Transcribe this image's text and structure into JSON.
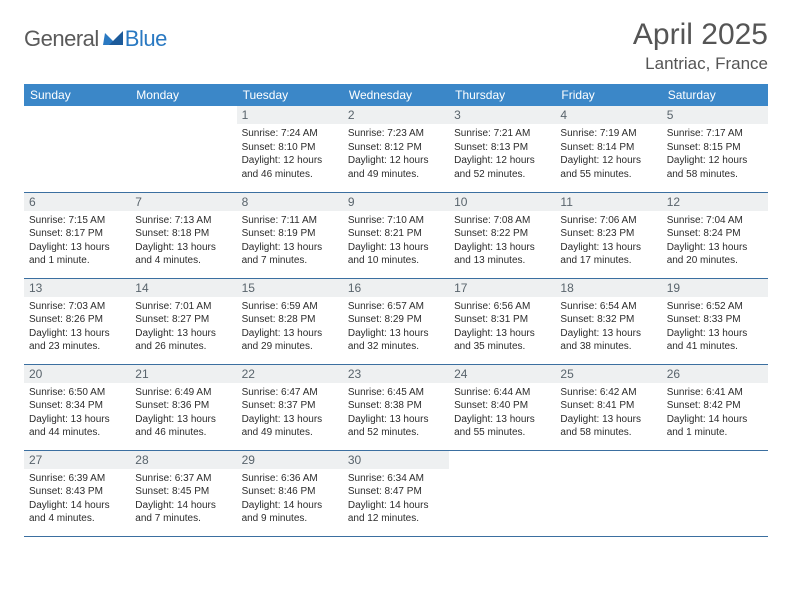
{
  "brand": {
    "part1": "General",
    "part2": "Blue"
  },
  "title": "April 2025",
  "location": "Lantriac, France",
  "colors": {
    "header_bg": "#3b87c8",
    "header_text": "#ffffff",
    "daynum_bg": "#eef0f1",
    "daynum_text": "#59646c",
    "border": "#3b6fa0",
    "title_text": "#555555",
    "logo_gray": "#5a5a5a",
    "logo_blue": "#2a79c2"
  },
  "weekdays": [
    "Sunday",
    "Monday",
    "Tuesday",
    "Wednesday",
    "Thursday",
    "Friday",
    "Saturday"
  ],
  "weeks": [
    [
      {
        "empty": true
      },
      {
        "empty": true
      },
      {
        "num": "1",
        "sunrise": "Sunrise: 7:24 AM",
        "sunset": "Sunset: 8:10 PM",
        "daylight": "Daylight: 12 hours and 46 minutes."
      },
      {
        "num": "2",
        "sunrise": "Sunrise: 7:23 AM",
        "sunset": "Sunset: 8:12 PM",
        "daylight": "Daylight: 12 hours and 49 minutes."
      },
      {
        "num": "3",
        "sunrise": "Sunrise: 7:21 AM",
        "sunset": "Sunset: 8:13 PM",
        "daylight": "Daylight: 12 hours and 52 minutes."
      },
      {
        "num": "4",
        "sunrise": "Sunrise: 7:19 AM",
        "sunset": "Sunset: 8:14 PM",
        "daylight": "Daylight: 12 hours and 55 minutes."
      },
      {
        "num": "5",
        "sunrise": "Sunrise: 7:17 AM",
        "sunset": "Sunset: 8:15 PM",
        "daylight": "Daylight: 12 hours and 58 minutes."
      }
    ],
    [
      {
        "num": "6",
        "sunrise": "Sunrise: 7:15 AM",
        "sunset": "Sunset: 8:17 PM",
        "daylight": "Daylight: 13 hours and 1 minute."
      },
      {
        "num": "7",
        "sunrise": "Sunrise: 7:13 AM",
        "sunset": "Sunset: 8:18 PM",
        "daylight": "Daylight: 13 hours and 4 minutes."
      },
      {
        "num": "8",
        "sunrise": "Sunrise: 7:11 AM",
        "sunset": "Sunset: 8:19 PM",
        "daylight": "Daylight: 13 hours and 7 minutes."
      },
      {
        "num": "9",
        "sunrise": "Sunrise: 7:10 AM",
        "sunset": "Sunset: 8:21 PM",
        "daylight": "Daylight: 13 hours and 10 minutes."
      },
      {
        "num": "10",
        "sunrise": "Sunrise: 7:08 AM",
        "sunset": "Sunset: 8:22 PM",
        "daylight": "Daylight: 13 hours and 13 minutes."
      },
      {
        "num": "11",
        "sunrise": "Sunrise: 7:06 AM",
        "sunset": "Sunset: 8:23 PM",
        "daylight": "Daylight: 13 hours and 17 minutes."
      },
      {
        "num": "12",
        "sunrise": "Sunrise: 7:04 AM",
        "sunset": "Sunset: 8:24 PM",
        "daylight": "Daylight: 13 hours and 20 minutes."
      }
    ],
    [
      {
        "num": "13",
        "sunrise": "Sunrise: 7:03 AM",
        "sunset": "Sunset: 8:26 PM",
        "daylight": "Daylight: 13 hours and 23 minutes."
      },
      {
        "num": "14",
        "sunrise": "Sunrise: 7:01 AM",
        "sunset": "Sunset: 8:27 PM",
        "daylight": "Daylight: 13 hours and 26 minutes."
      },
      {
        "num": "15",
        "sunrise": "Sunrise: 6:59 AM",
        "sunset": "Sunset: 8:28 PM",
        "daylight": "Daylight: 13 hours and 29 minutes."
      },
      {
        "num": "16",
        "sunrise": "Sunrise: 6:57 AM",
        "sunset": "Sunset: 8:29 PM",
        "daylight": "Daylight: 13 hours and 32 minutes."
      },
      {
        "num": "17",
        "sunrise": "Sunrise: 6:56 AM",
        "sunset": "Sunset: 8:31 PM",
        "daylight": "Daylight: 13 hours and 35 minutes."
      },
      {
        "num": "18",
        "sunrise": "Sunrise: 6:54 AM",
        "sunset": "Sunset: 8:32 PM",
        "daylight": "Daylight: 13 hours and 38 minutes."
      },
      {
        "num": "19",
        "sunrise": "Sunrise: 6:52 AM",
        "sunset": "Sunset: 8:33 PM",
        "daylight": "Daylight: 13 hours and 41 minutes."
      }
    ],
    [
      {
        "num": "20",
        "sunrise": "Sunrise: 6:50 AM",
        "sunset": "Sunset: 8:34 PM",
        "daylight": "Daylight: 13 hours and 44 minutes."
      },
      {
        "num": "21",
        "sunrise": "Sunrise: 6:49 AM",
        "sunset": "Sunset: 8:36 PM",
        "daylight": "Daylight: 13 hours and 46 minutes."
      },
      {
        "num": "22",
        "sunrise": "Sunrise: 6:47 AM",
        "sunset": "Sunset: 8:37 PM",
        "daylight": "Daylight: 13 hours and 49 minutes."
      },
      {
        "num": "23",
        "sunrise": "Sunrise: 6:45 AM",
        "sunset": "Sunset: 8:38 PM",
        "daylight": "Daylight: 13 hours and 52 minutes."
      },
      {
        "num": "24",
        "sunrise": "Sunrise: 6:44 AM",
        "sunset": "Sunset: 8:40 PM",
        "daylight": "Daylight: 13 hours and 55 minutes."
      },
      {
        "num": "25",
        "sunrise": "Sunrise: 6:42 AM",
        "sunset": "Sunset: 8:41 PM",
        "daylight": "Daylight: 13 hours and 58 minutes."
      },
      {
        "num": "26",
        "sunrise": "Sunrise: 6:41 AM",
        "sunset": "Sunset: 8:42 PM",
        "daylight": "Daylight: 14 hours and 1 minute."
      }
    ],
    [
      {
        "num": "27",
        "sunrise": "Sunrise: 6:39 AM",
        "sunset": "Sunset: 8:43 PM",
        "daylight": "Daylight: 14 hours and 4 minutes."
      },
      {
        "num": "28",
        "sunrise": "Sunrise: 6:37 AM",
        "sunset": "Sunset: 8:45 PM",
        "daylight": "Daylight: 14 hours and 7 minutes."
      },
      {
        "num": "29",
        "sunrise": "Sunrise: 6:36 AM",
        "sunset": "Sunset: 8:46 PM",
        "daylight": "Daylight: 14 hours and 9 minutes."
      },
      {
        "num": "30",
        "sunrise": "Sunrise: 6:34 AM",
        "sunset": "Sunset: 8:47 PM",
        "daylight": "Daylight: 14 hours and 12 minutes."
      },
      {
        "empty": true
      },
      {
        "empty": true
      },
      {
        "empty": true
      }
    ]
  ]
}
